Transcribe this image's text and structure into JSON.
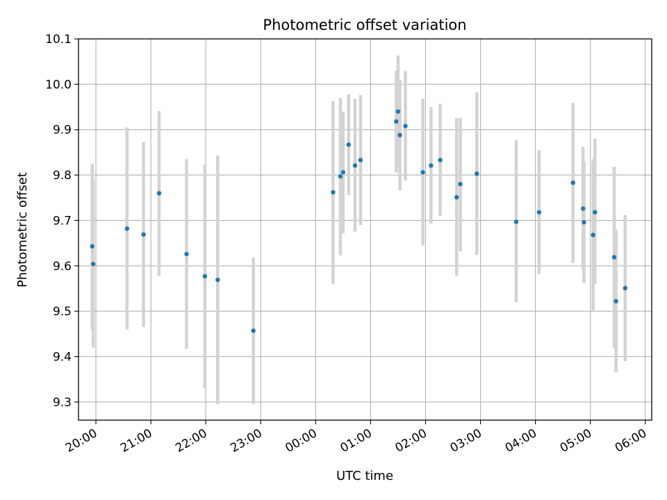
{
  "chart_data": {
    "type": "scatter",
    "title": "Photometric offset variation",
    "xlabel": "UTC time",
    "ylabel": "Photometric offset",
    "xlim": [
      "2024-01-01T19:41:00",
      "2024-01-02T06:07:00"
    ],
    "ylim": [
      9.26,
      10.1
    ],
    "x_ticks": [
      {
        "t": "2024-01-01T20:00:00",
        "label": "20:00"
      },
      {
        "t": "2024-01-01T21:00:00",
        "label": "21:00"
      },
      {
        "t": "2024-01-01T22:00:00",
        "label": "22:00"
      },
      {
        "t": "2024-01-01T23:00:00",
        "label": "23:00"
      },
      {
        "t": "2024-01-02T00:00:00",
        "label": "00:00"
      },
      {
        "t": "2024-01-02T01:00:00",
        "label": "01:00"
      },
      {
        "t": "2024-01-02T02:00:00",
        "label": "02:00"
      },
      {
        "t": "2024-01-02T03:00:00",
        "label": "03:00"
      },
      {
        "t": "2024-01-02T04:00:00",
        "label": "04:00"
      },
      {
        "t": "2024-01-02T05:00:00",
        "label": "05:00"
      },
      {
        "t": "2024-01-02T06:00:00",
        "label": "06:00"
      }
    ],
    "y_ticks": [
      9.3,
      9.4,
      9.5,
      9.6,
      9.7,
      9.8,
      9.9,
      10.0,
      10.1
    ],
    "y_tick_labels": [
      "9.3",
      "9.4",
      "9.5",
      "9.6",
      "9.7",
      "9.8",
      "9.9",
      "10.0",
      "10.1"
    ],
    "grid": true,
    "marker_color": "#1f77b4",
    "errorbar_color": "#d3d3d3",
    "points": [
      {
        "t": "2024-01-01T19:56:00",
        "y": 9.643,
        "lo": 9.46,
        "hi": 9.825
      },
      {
        "t": "2024-01-01T19:57:00",
        "y": 9.604,
        "lo": 9.42,
        "hi": 9.79
      },
      {
        "t": "2024-01-01T20:34:00",
        "y": 9.682,
        "lo": 9.46,
        "hi": 9.905
      },
      {
        "t": "2024-01-01T20:52:00",
        "y": 9.669,
        "lo": 9.465,
        "hi": 9.873
      },
      {
        "t": "2024-01-01T21:09:00",
        "y": 9.76,
        "lo": 9.578,
        "hi": 9.941
      },
      {
        "t": "2024-01-01T21:39:00",
        "y": 9.626,
        "lo": 9.417,
        "hi": 9.835
      },
      {
        "t": "2024-01-01T21:59:00",
        "y": 9.577,
        "lo": 9.33,
        "hi": 9.823
      },
      {
        "t": "2024-01-01T22:13:00",
        "y": 9.569,
        "lo": 9.295,
        "hi": 9.843
      },
      {
        "t": "2024-01-01T22:52:00",
        "y": 9.457,
        "lo": 9.296,
        "hi": 9.618
      },
      {
        "t": "2024-01-02T00:19:00",
        "y": 9.762,
        "lo": 9.56,
        "hi": 9.963
      },
      {
        "t": "2024-01-02T00:27:00",
        "y": 9.797,
        "lo": 9.623,
        "hi": 9.97
      },
      {
        "t": "2024-01-02T00:30:00",
        "y": 9.806,
        "lo": 9.672,
        "hi": 9.94
      },
      {
        "t": "2024-01-02T00:36:00",
        "y": 9.867,
        "lo": 9.756,
        "hi": 9.978
      },
      {
        "t": "2024-01-02T00:43:00",
        "y": 9.821,
        "lo": 9.675,
        "hi": 9.968
      },
      {
        "t": "2024-01-02T00:49:00",
        "y": 9.833,
        "lo": 9.69,
        "hi": 9.976
      },
      {
        "t": "2024-01-02T01:28:00",
        "y": 9.918,
        "lo": 9.805,
        "hi": 10.03
      },
      {
        "t": "2024-01-02T01:30:00",
        "y": 9.94,
        "lo": 9.816,
        "hi": 10.063
      },
      {
        "t": "2024-01-02T01:32:00",
        "y": 9.888,
        "lo": 9.766,
        "hi": 10.01
      },
      {
        "t": "2024-01-02T01:38:00",
        "y": 9.908,
        "lo": 9.788,
        "hi": 10.029
      },
      {
        "t": "2024-01-02T01:57:00",
        "y": 9.806,
        "lo": 9.645,
        "hi": 9.968
      },
      {
        "t": "2024-01-02T02:06:00",
        "y": 9.821,
        "lo": 9.693,
        "hi": 9.95
      },
      {
        "t": "2024-01-02T02:16:00",
        "y": 9.833,
        "lo": 9.71,
        "hi": 9.957
      },
      {
        "t": "2024-01-02T02:34:00",
        "y": 9.751,
        "lo": 9.578,
        "hi": 9.925
      },
      {
        "t": "2024-01-02T02:38:00",
        "y": 9.78,
        "lo": 9.632,
        "hi": 9.926
      },
      {
        "t": "2024-01-02T02:56:00",
        "y": 9.803,
        "lo": 9.624,
        "hi": 9.982
      },
      {
        "t": "2024-01-02T03:39:00",
        "y": 9.697,
        "lo": 9.52,
        "hi": 9.877
      },
      {
        "t": "2024-01-02T04:04:00",
        "y": 9.718,
        "lo": 9.582,
        "hi": 9.855
      },
      {
        "t": "2024-01-02T04:41:00",
        "y": 9.783,
        "lo": 9.606,
        "hi": 9.959
      },
      {
        "t": "2024-01-02T04:52:00",
        "y": 9.726,
        "lo": 9.59,
        "hi": 9.862
      },
      {
        "t": "2024-01-02T04:53:00",
        "y": 9.696,
        "lo": 9.562,
        "hi": 9.83
      },
      {
        "t": "2024-01-02T05:03:00",
        "y": 9.668,
        "lo": 9.5,
        "hi": 9.835
      },
      {
        "t": "2024-01-02T05:05:00",
        "y": 9.718,
        "lo": 9.56,
        "hi": 9.88
      },
      {
        "t": "2024-01-02T05:26:00",
        "y": 9.619,
        "lo": 9.42,
        "hi": 9.818
      },
      {
        "t": "2024-01-02T05:28:00",
        "y": 9.522,
        "lo": 9.365,
        "hi": 9.679
      },
      {
        "t": "2024-01-02T05:38:00",
        "y": 9.551,
        "lo": 9.39,
        "hi": 9.712
      }
    ]
  }
}
